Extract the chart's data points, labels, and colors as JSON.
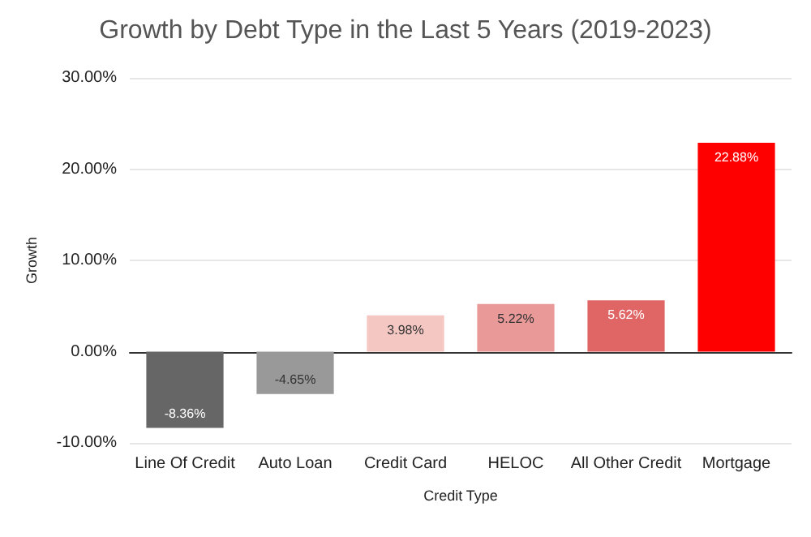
{
  "chart_data": {
    "type": "bar",
    "title": "Growth by Debt Type in the Last 5 Years (2019-2023)",
    "xlabel": "Credit Type",
    "ylabel": "Growth",
    "categories": [
      "Line Of Credit",
      "Auto Loan",
      "Credit Card",
      "HELOC",
      "All Other Credit",
      "Mortgage"
    ],
    "values": [
      -8.36,
      -4.65,
      3.98,
      5.22,
      5.62,
      22.88
    ],
    "value_labels": [
      "-8.36%",
      "-4.65%",
      "3.98%",
      "5.22%",
      "5.62%",
      "22.88%"
    ],
    "colors": [
      "#666666",
      "#999999",
      "#f4c7c3",
      "#ea9999",
      "#e06666",
      "#ff0000"
    ],
    "ylim": [
      -10,
      30
    ],
    "yticks": [
      {
        "value": -10,
        "label": "-10.00%"
      },
      {
        "value": 0,
        "label": "0.00%"
      },
      {
        "value": 10,
        "label": "10.00%"
      },
      {
        "value": 20,
        "label": "20.00%"
      },
      {
        "value": 30,
        "label": "30.00%"
      }
    ],
    "grid": "y"
  }
}
